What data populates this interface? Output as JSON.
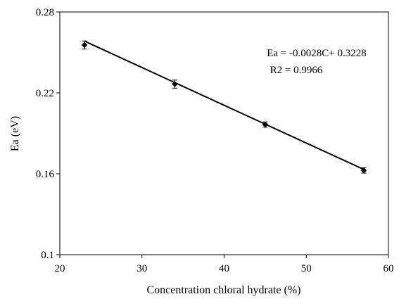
{
  "chart_data": {
    "type": "scatter",
    "xlabel": "Concentration chloral hydrate (%)",
    "ylabel": "Ea (eV)",
    "xlim": [
      20,
      60
    ],
    "ylim": [
      0.1,
      0.28
    ],
    "xticks": [
      20,
      30,
      40,
      50,
      60
    ],
    "xtick_labels": [
      "20",
      "30",
      "40",
      "50",
      "60"
    ],
    "yticks": [
      0.1,
      0.16,
      0.22,
      0.28
    ],
    "ytick_labels": [
      "0.1",
      "0.16",
      "0.22",
      "0.28"
    ],
    "grid": false,
    "legend": "none",
    "series": [
      {
        "x": [
          23,
          34,
          45,
          57
        ],
        "y": [
          0.2555,
          0.2265,
          0.1965,
          0.1625
        ],
        "error": [
          0.003,
          0.003,
          0.002,
          0.002
        ],
        "marker": "diamond",
        "color": "#000000"
      }
    ],
    "trendline": {
      "slope": -0.0028,
      "intercept": 0.3228,
      "x_range": [
        23,
        57
      ],
      "color": "#000000"
    },
    "annotations": [
      "Ea = -0.0028C+ 0.3228",
      "R2 = 0.9966"
    ]
  }
}
